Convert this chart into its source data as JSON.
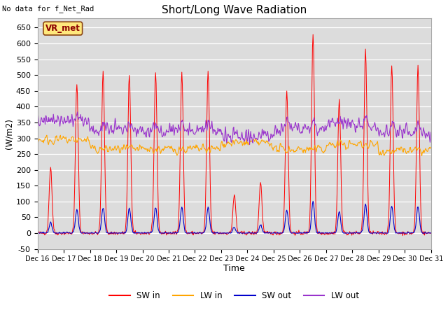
{
  "title": "Short/Long Wave Radiation",
  "top_left_text": "No data for f_Net_Rad",
  "box_label": "VR_met",
  "ylabel": "(W/m2)",
  "xlabel": "Time",
  "ylim": [
    -50,
    680
  ],
  "yticks": [
    -50,
    0,
    50,
    100,
    150,
    200,
    250,
    300,
    350,
    400,
    450,
    500,
    550,
    600,
    650
  ],
  "bg_color": "#dcdcdc",
  "fig_color": "#ffffff",
  "legend_entries": [
    "SW in",
    "LW in",
    "SW out",
    "LW out"
  ],
  "line_colors": [
    "#ff0000",
    "#ffa500",
    "#0000cc",
    "#9933cc"
  ],
  "n_days": 15,
  "start_day": 16
}
